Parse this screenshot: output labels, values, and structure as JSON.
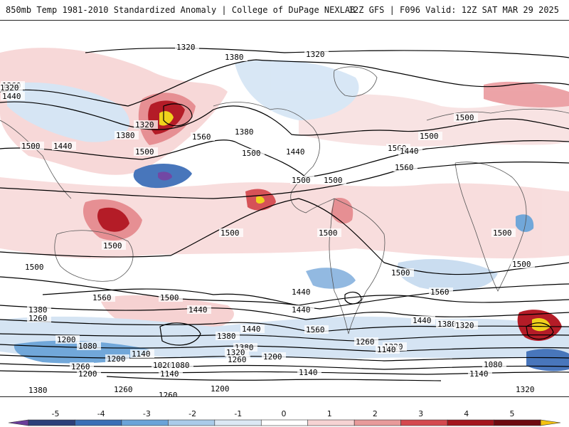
{
  "header": {
    "title_left": "850mb Temp 1981-2010 Standardized Anomaly | College of DuPage NEXLAB",
    "title_right": "12Z GFS | F096 Valid: 12Z SAT MAR 29 2025"
  },
  "map": {
    "contour_labels": [
      "1320",
      "1380",
      "1320",
      "1260",
      "1320",
      "1440",
      "1500",
      "1500",
      "1440",
      "1380",
      "1320",
      "1560",
      "1500",
      "1380",
      "1500",
      "1440",
      "1500",
      "1560",
      "1500",
      "1500",
      "1440",
      "1560",
      "1500",
      "1500",
      "1500",
      "1500",
      "1440",
      "1500",
      "1500",
      "1380",
      "1260",
      "1560",
      "1500",
      "1440",
      "1440",
      "1440",
      "1380",
      "1320",
      "1560",
      "1500",
      "1200",
      "1080",
      "1140",
      "1380",
      "1320",
      "1200",
      "1260",
      "1200",
      "1020",
      "1080",
      "1140",
      "1320",
      "1260",
      "1140",
      "1080",
      "1140",
      "1140",
      "1260",
      "1200",
      "1260",
      "1200",
      "1320",
      "1380",
      "1260",
      "1440",
      "1380",
      "1560"
    ]
  },
  "colorbar": {
    "labels": [
      "-5",
      "-4",
      "-3",
      "-2",
      "-1",
      "0",
      "1",
      "2",
      "3",
      "4",
      "5"
    ],
    "colors": [
      "#6a3d9a",
      "#2c3f7a",
      "#3a6fb6",
      "#6aa3d8",
      "#a9cbe9",
      "#dbe8f4",
      "#ffffff",
      "#f6d3d3",
      "#e79a9a",
      "#d4494f",
      "#a3151d",
      "#6e0a10",
      "#f5c211"
    ]
  },
  "palette": {
    "warm_light": "#f7d6d6",
    "warm_mid": "#e58a8e",
    "warm_dark": "#b0101c",
    "warm_extreme": "#f0d010",
    "cold_light": "#d4e4f4",
    "cold_mid": "#8db6e0",
    "cold_dark": "#3f6fb8",
    "cold_extreme": "#6b3fa0",
    "contour": "#000000",
    "border": "#666666"
  }
}
